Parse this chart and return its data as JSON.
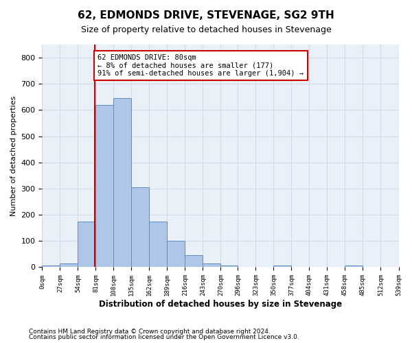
{
  "title": "62, EDMONDS DRIVE, STEVENAGE, SG2 9TH",
  "subtitle": "Size of property relative to detached houses in Stevenage",
  "xlabel": "Distribution of detached houses by size in Stevenage",
  "ylabel": "Number of detached properties",
  "property_size": 80,
  "annotation_line": "62 EDMONDS DRIVE: 80sqm",
  "annotation_line2": "← 8% of detached houses are smaller (177)",
  "annotation_line3": "91% of semi-detached houses are larger (1,904) →",
  "bar_edges": [
    0,
    27,
    54,
    81,
    108,
    135,
    162,
    189,
    216,
    243,
    270,
    296,
    323,
    350,
    377,
    404,
    431,
    458,
    485,
    512,
    539
  ],
  "bar_heights": [
    7,
    15,
    175,
    620,
    645,
    305,
    175,
    100,
    45,
    15,
    7,
    0,
    0,
    7,
    0,
    0,
    0,
    7,
    0,
    0
  ],
  "bar_color": "#aec6e8",
  "bar_edge_color": "#5a8fc2",
  "property_line_color": "#cc0000",
  "annotation_box_color": "#cc0000",
  "grid_color": "#d0dce8",
  "background_color": "#eaf0f8",
  "ylim": [
    0,
    850
  ],
  "yticks": [
    0,
    100,
    200,
    300,
    400,
    500,
    600,
    700,
    800
  ],
  "footer1": "Contains HM Land Registry data © Crown copyright and database right 2024.",
  "footer2": "Contains public sector information licensed under the Open Government Licence v3.0."
}
